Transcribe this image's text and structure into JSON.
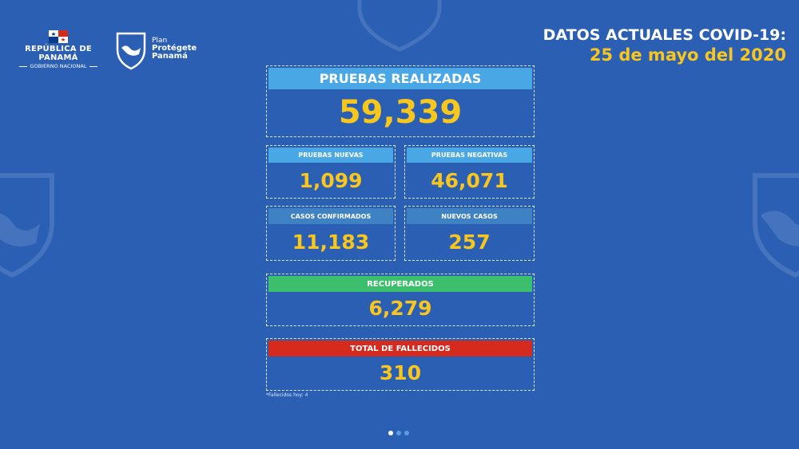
{
  "colors": {
    "background": "#2b5fb4",
    "accent_yellow": "#f9c61e",
    "label_light_blue": "#4aa7e6",
    "label_mid_blue": "#3e82c4",
    "label_green": "#3cbf6d",
    "label_red": "#d52b1e"
  },
  "logos": {
    "left_title": "REPÚBLICA DE PANAMÁ",
    "left_subtitle": "GOBIERNO NACIONAL",
    "right_line1": "Plan",
    "right_line2": "Protégete",
    "right_line3": "Panamá",
    "flag_icon": "panama-flag-icon",
    "shield_icon": "shield-map-icon"
  },
  "header": {
    "line1": "DATOS ACTUALES COVID-19:",
    "line2": "25 de mayo del 2020"
  },
  "stats": {
    "pruebas_realizadas": {
      "label": "PRUEBAS REALIZADAS",
      "value": "59,339"
    },
    "pruebas_nuevas": {
      "label": "PRUEBAS NUEVAS",
      "value": "1,099"
    },
    "pruebas_negativas": {
      "label": "PRUEBAS NEGATIVAS",
      "value": "46,071"
    },
    "casos_confirmados": {
      "label": "CASOS CONFIRMADOS",
      "value": "11,183"
    },
    "nuevos_casos": {
      "label": "NUEVOS CASOS",
      "value": "257"
    },
    "recuperados": {
      "label": "RECUPERADOS",
      "value": "6,279"
    },
    "total_fallecidos": {
      "label": "TOTAL DE FALLECIDOS",
      "value": "310"
    }
  },
  "footnote": "*Fallecidos hoy: 4",
  "pagination": {
    "count": 3,
    "active": 0
  }
}
